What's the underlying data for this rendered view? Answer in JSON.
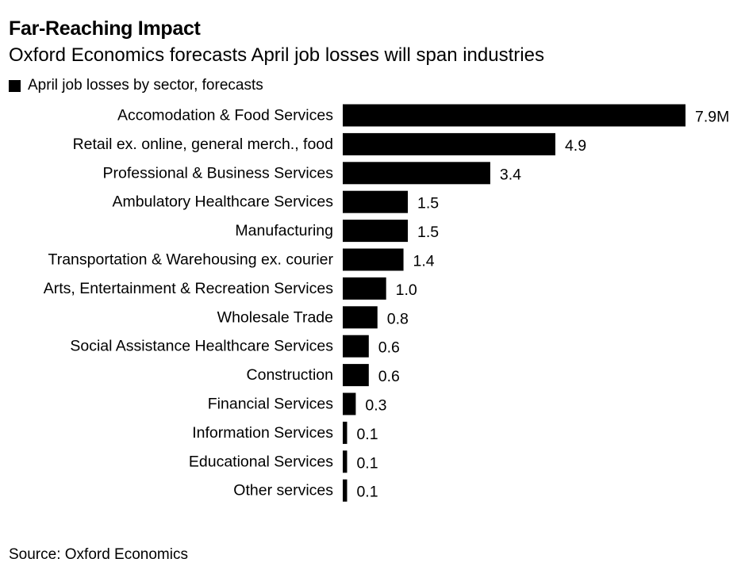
{
  "chart_data": {
    "type": "bar",
    "orientation": "horizontal",
    "title": "Far-Reaching Impact",
    "subtitle": "Oxford Economics forecasts April job losses will span industries",
    "legend": [
      "April job losses by sector, forecasts"
    ],
    "categories": [
      "Accomodation & Food Services",
      "Retail ex. online, general merch., food",
      "Professional & Business Services",
      "Ambulatory Healthcare Services",
      "Manufacturing",
      "Transportation & Warehousing ex. courier",
      "Arts, Entertainment & Recreation Services",
      "Wholesale Trade",
      "Social Assistance Healthcare Services",
      "Construction",
      "Financial Services",
      "Information Services",
      "Educational Services",
      "Other services"
    ],
    "values": [
      7.9,
      4.9,
      3.4,
      1.5,
      1.5,
      1.4,
      1.0,
      0.8,
      0.6,
      0.6,
      0.3,
      0.1,
      0.1,
      0.1
    ],
    "value_labels": [
      "7.9M",
      "4.9",
      "3.4",
      "1.5",
      "1.5",
      "1.4",
      "1.0",
      "0.8",
      "0.6",
      "0.6",
      "0.3",
      "0.1",
      "0.1",
      "0.1"
    ],
    "unit": "million jobs",
    "xlim": [
      0,
      7.9
    ],
    "grid": false,
    "bar_color": "#000000",
    "source": "Source: Oxford Economics"
  }
}
